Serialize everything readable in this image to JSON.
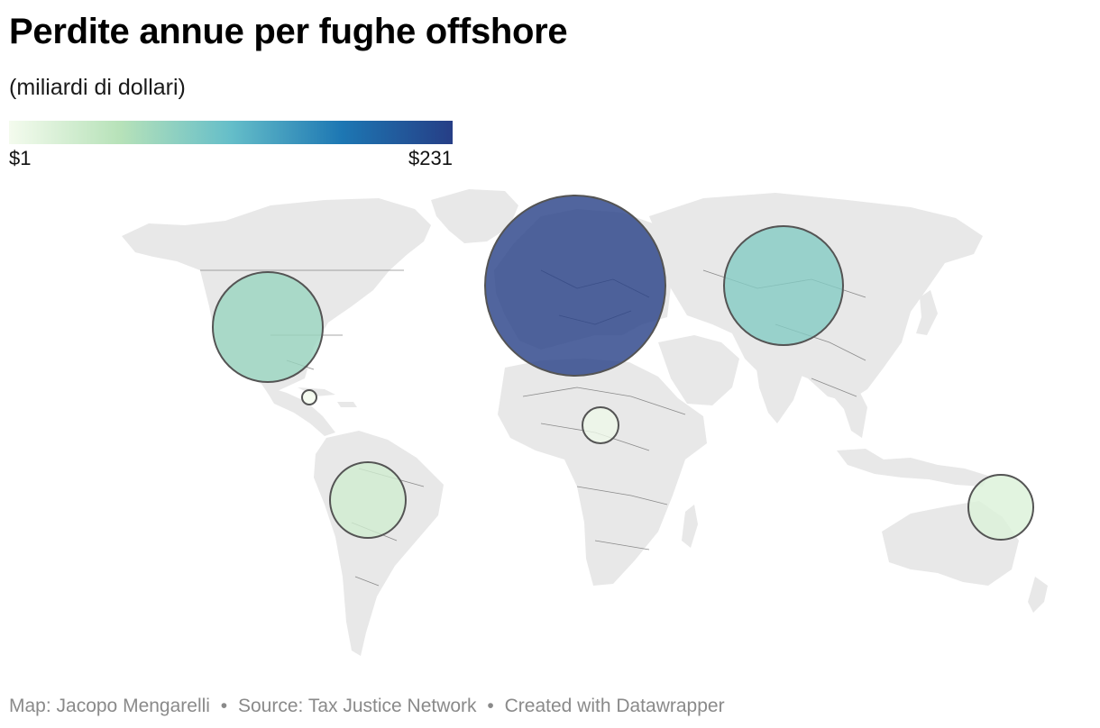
{
  "title": "Perdite annue per fughe offshore",
  "subtitle": "(miliardi di dollari)",
  "legend": {
    "min_label": "$1",
    "max_label": "$231",
    "min_value": 1,
    "max_value": 231,
    "gradient_colors": [
      "#f4fbee",
      "#b7e2b9",
      "#65bec9",
      "#1d77b3",
      "#263e86"
    ]
  },
  "footer": {
    "map_credit": "Map: Jacopo Mengarelli",
    "source": "Source: Tax Justice Network",
    "created": "Created with Datawrapper",
    "separator": "•"
  },
  "colors": {
    "land": "#e8e8e8",
    "border": "#8a8a8a",
    "bubble_stroke": "#545454"
  },
  "regions": [
    {
      "name": "Europe",
      "value": 231
    },
    {
      "name": "Asia",
      "value": 95
    },
    {
      "name": "North America",
      "value": 80
    },
    {
      "name": "South America",
      "value": 35
    },
    {
      "name": "Oceania",
      "value": 25
    },
    {
      "name": "Africa",
      "value": 8
    },
    {
      "name": "Caribbean",
      "value": 1
    }
  ]
}
